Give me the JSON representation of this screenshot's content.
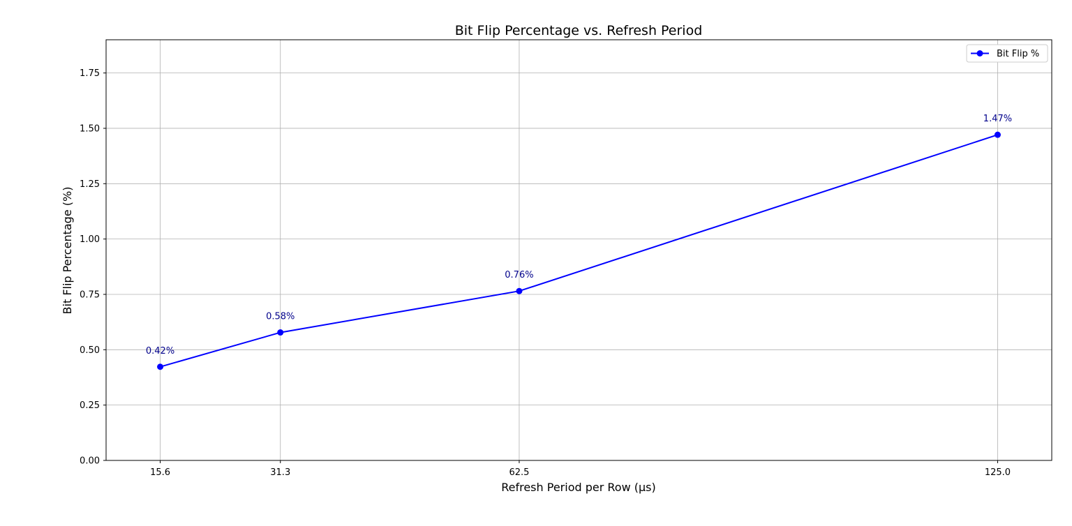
{
  "chart_data": {
    "type": "line",
    "title": "Bit Flip Percentage vs. Refresh Period",
    "xlabel": "Refresh Period per Row (µs)",
    "ylabel": "Bit Flip Percentage (%)",
    "x": [
      15.6,
      31.3,
      62.5,
      125.0
    ],
    "x_tick_labels": [
      "15.6",
      "31.3",
      "62.5",
      "125.0"
    ],
    "xlim": [
      8.53,
      132.07
    ],
    "ylim": [
      0,
      1.9
    ],
    "y_ticks": [
      0,
      0.25,
      0.5,
      0.75,
      1.0,
      1.25,
      1.5,
      1.75
    ],
    "y_tick_labels": [
      "0.00",
      "0.25",
      "0.50",
      "0.75",
      "1.00",
      "1.25",
      "1.50",
      "1.75"
    ],
    "grid": true,
    "legend_position": "top-right",
    "series": [
      {
        "name": "Bit Flip %",
        "color": "#0000ff",
        "marker": "circle",
        "values": [
          0.423,
          0.578,
          0.765,
          1.471
        ],
        "labels": [
          "0.42%",
          "0.58%",
          "0.76%",
          "1.47%"
        ]
      }
    ]
  }
}
